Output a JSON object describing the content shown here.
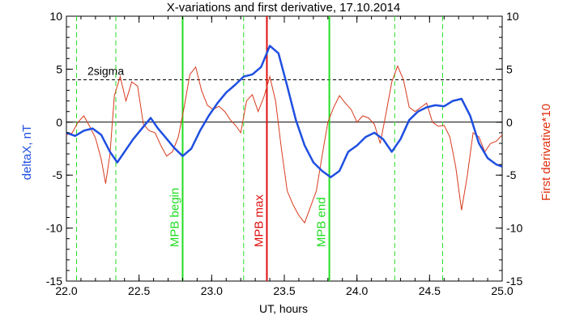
{
  "chart_data": {
    "type": "line",
    "title": "X-variations and first derivative, 17.10.2014",
    "xlabel": "UT, hours",
    "ylabel_left": "deltaX, nT",
    "ylabel_right": "First derivative*10",
    "xlim": [
      22.0,
      25.0
    ],
    "ylim_left": [
      -15,
      10
    ],
    "ylim_right": [
      -15,
      10
    ],
    "xticks": [
      "22.0",
      "22.5",
      "23.0",
      "23.5",
      "24.0",
      "24.5",
      "25.0"
    ],
    "xtick_values": [
      22.0,
      22.5,
      23.0,
      23.5,
      24.0,
      24.5,
      25.0
    ],
    "yticks": [
      "-15",
      "-10",
      "-5",
      "0",
      "5",
      "10"
    ],
    "ytick_values": [
      -15,
      -10,
      -5,
      0,
      5,
      10
    ],
    "zero_line": 0,
    "sigma_level": 4,
    "sigma_label": "2sigma",
    "colors": {
      "deltaX": "#1f4fe0",
      "derivative": "#d83a1c",
      "mpb_lines": "#22dd22",
      "max_line": "#e01010",
      "axis": "#000000"
    },
    "series": [
      {
        "name": "deltaX",
        "x": [
          22.0,
          22.06,
          22.12,
          22.18,
          22.24,
          22.3,
          22.35,
          22.4,
          22.46,
          22.52,
          22.58,
          22.63,
          22.68,
          22.74,
          22.8,
          22.86,
          22.92,
          22.98,
          23.04,
          23.1,
          23.16,
          23.22,
          23.28,
          23.34,
          23.4,
          23.46,
          23.52,
          23.58,
          23.64,
          23.7,
          23.76,
          23.82,
          23.88,
          23.94,
          24.0,
          24.06,
          24.12,
          24.18,
          24.24,
          24.3,
          24.36,
          24.42,
          24.48,
          24.54,
          24.6,
          24.66,
          24.72,
          24.78,
          24.84,
          24.9,
          24.96,
          25.0
        ],
        "values": [
          -1.0,
          -1.3,
          -0.8,
          -0.6,
          -1.2,
          -2.8,
          -3.8,
          -2.8,
          -1.6,
          -0.6,
          0.4,
          -0.6,
          -1.4,
          -2.4,
          -3.2,
          -2.5,
          -0.8,
          0.6,
          1.8,
          2.8,
          3.5,
          4.3,
          4.5,
          5.2,
          7.2,
          6.5,
          3.4,
          0.2,
          -2.2,
          -3.8,
          -4.6,
          -5.2,
          -4.6,
          -2.8,
          -2.2,
          -1.4,
          -1.0,
          -1.6,
          -2.8,
          -1.6,
          0.2,
          1.0,
          1.4,
          1.6,
          1.5,
          2.0,
          2.2,
          0.6,
          -2.0,
          -3.4,
          -4.0,
          -4.2
        ]
      },
      {
        "name": "First derivative*10",
        "x": [
          22.0,
          22.04,
          22.08,
          22.12,
          22.16,
          22.2,
          22.24,
          22.27,
          22.3,
          22.33,
          22.37,
          22.41,
          22.45,
          22.49,
          22.53,
          22.57,
          22.61,
          22.65,
          22.69,
          22.73,
          22.77,
          22.81,
          22.85,
          22.89,
          22.93,
          22.97,
          23.01,
          23.05,
          23.09,
          23.13,
          23.17,
          23.2,
          23.24,
          23.28,
          23.32,
          23.36,
          23.4,
          23.44,
          23.48,
          23.52,
          23.56,
          23.6,
          23.64,
          23.68,
          23.72,
          23.76,
          23.8,
          23.84,
          23.88,
          23.92,
          23.96,
          24.0,
          24.04,
          24.08,
          24.12,
          24.16,
          24.2,
          24.24,
          24.28,
          24.32,
          24.36,
          24.4,
          24.44,
          24.48,
          24.52,
          24.56,
          24.6,
          24.64,
          24.68,
          24.72,
          24.76,
          24.8,
          24.84,
          24.88,
          24.92,
          24.96,
          25.0
        ],
        "values": [
          -1.2,
          -1.0,
          0.0,
          0.6,
          -0.4,
          -1.5,
          -3.5,
          -5.8,
          -3.0,
          2.5,
          4.3,
          2.0,
          3.8,
          3.4,
          -0.2,
          -0.8,
          -1.0,
          -2.2,
          -3.2,
          -2.8,
          -1.4,
          1.4,
          4.5,
          5.2,
          3.0,
          1.6,
          1.2,
          1.5,
          1.0,
          0.2,
          -0.4,
          -1.0,
          2.0,
          2.6,
          1.0,
          2.4,
          4.3,
          2.0,
          -2.5,
          -6.5,
          -7.8,
          -8.8,
          -9.5,
          -8.0,
          -6.5,
          -3.2,
          0.0,
          1.4,
          2.5,
          1.8,
          1.2,
          0.0,
          0.6,
          0.4,
          -0.2,
          -2.0,
          0.8,
          3.8,
          5.3,
          4.0,
          1.4,
          1.0,
          1.4,
          1.8,
          0.0,
          -0.4,
          -0.3,
          -1.4,
          -4.2,
          -8.3,
          -5.0,
          -1.0,
          -1.4,
          -2.8,
          -2.0,
          -1.8,
          -1.2
        ]
      }
    ],
    "vertical_lines": [
      {
        "x": 22.07,
        "style": "dashed",
        "color": "#22dd22",
        "label": ""
      },
      {
        "x": 22.34,
        "style": "dashed",
        "color": "#22dd22",
        "label": ""
      },
      {
        "x": 22.8,
        "style": "solid",
        "color": "#22dd22",
        "label": "MPB begin"
      },
      {
        "x": 23.22,
        "style": "dashed",
        "color": "#22dd22",
        "label": ""
      },
      {
        "x": 23.38,
        "style": "solid",
        "color": "#e01010",
        "label": "MPB max"
      },
      {
        "x": 23.81,
        "style": "solid",
        "color": "#22dd22",
        "label": "MPB end"
      },
      {
        "x": 24.26,
        "style": "dashed",
        "color": "#22dd22",
        "label": ""
      },
      {
        "x": 24.59,
        "style": "dashed",
        "color": "#22dd22",
        "label": ""
      }
    ]
  }
}
